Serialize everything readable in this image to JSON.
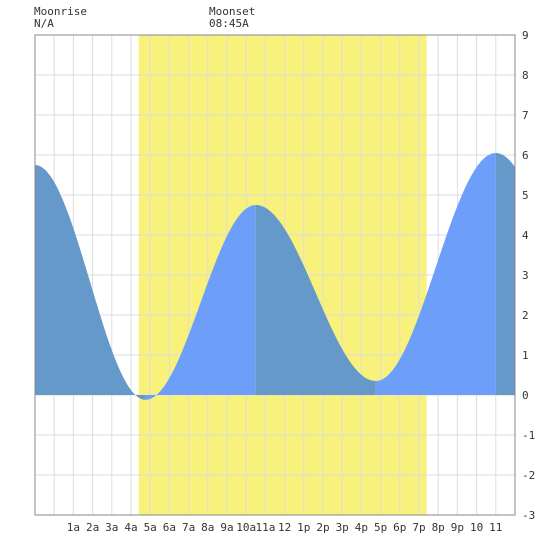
{
  "header": {
    "moonrise_label": "Moonrise",
    "moonrise_value": "N/A",
    "moonset_label": "Moonset",
    "moonset_value": "08:45A"
  },
  "chart_data": {
    "type": "area",
    "title": "",
    "xlabel": "",
    "ylabel": "",
    "xlim_hours": [
      -1,
      24
    ],
    "ylim": [
      -3,
      9
    ],
    "yticks": [
      -3,
      -2,
      -1,
      0,
      1,
      2,
      3,
      4,
      5,
      6,
      7,
      8,
      9
    ],
    "x_tick_hours": [
      1,
      2,
      3,
      4,
      5,
      6,
      7,
      8,
      9,
      10,
      11,
      12,
      13,
      14,
      15,
      16,
      17,
      18,
      19,
      20,
      21,
      22,
      23
    ],
    "x_tick_labels": [
      "1a",
      "2a",
      "3a",
      "4a",
      "5a",
      "6a",
      "7a",
      "8a",
      "9a",
      "10a",
      "11a",
      "12",
      "1p",
      "2p",
      "3p",
      "4p",
      "5p",
      "6p",
      "7p",
      "8p",
      "9p",
      "10",
      "11"
    ],
    "daylight_hours": [
      4.4,
      19.4
    ],
    "tide_extremes": [
      {
        "hour": -1.0,
        "height": 5.75,
        "kind": "start"
      },
      {
        "hour": 4.75,
        "height": -0.12,
        "kind": "low"
      },
      {
        "hour": 10.5,
        "height": 4.75,
        "kind": "high"
      },
      {
        "hour": 16.75,
        "height": 0.35,
        "kind": "low"
      },
      {
        "hour": 23.0,
        "height": 6.05,
        "kind": "high"
      }
    ],
    "colors": {
      "daylight": "#f8f17c",
      "rising": "#6d9ffa",
      "falling": "#6499c9",
      "grid": "#dddddd",
      "axis": "#888888"
    }
  }
}
